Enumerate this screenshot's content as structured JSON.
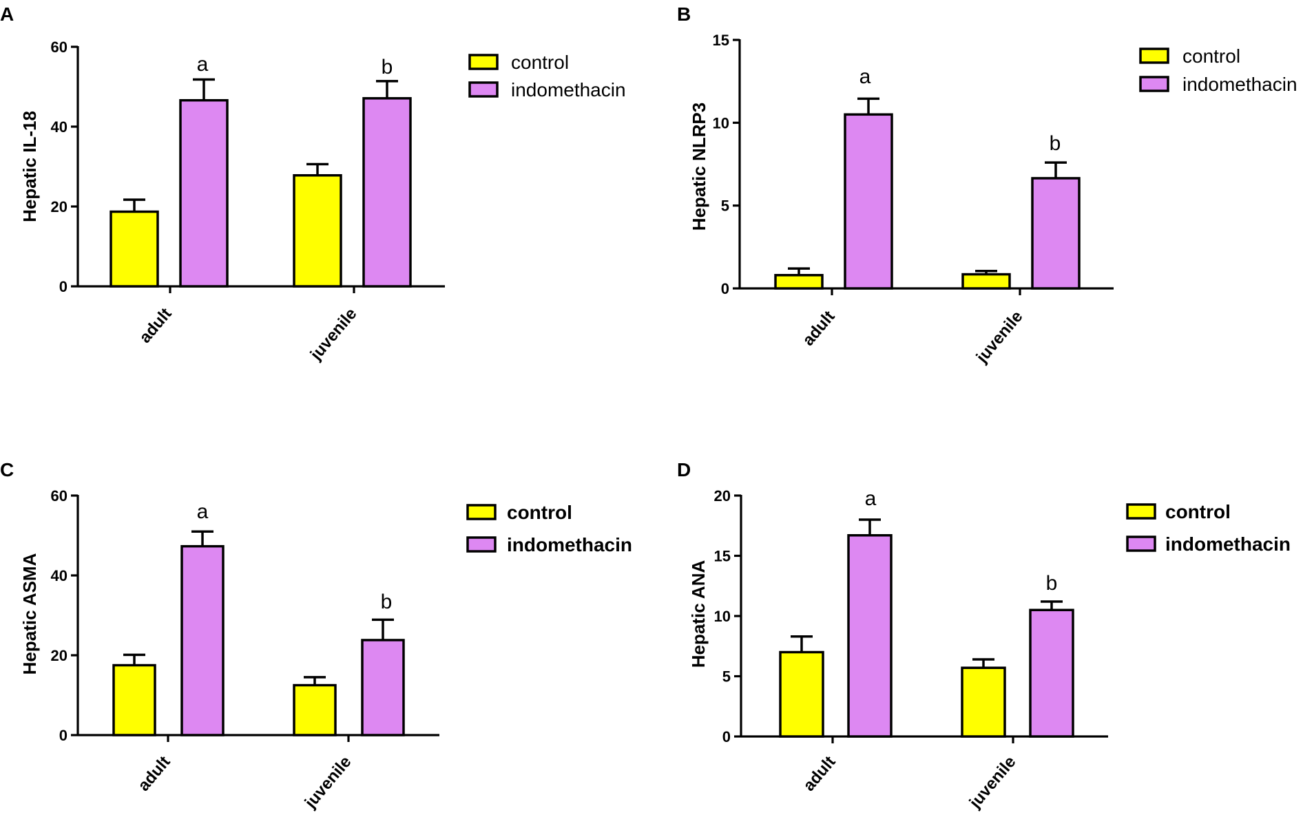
{
  "colors": {
    "control": "#ffff00",
    "indomethacin": "#dd88f2",
    "axis": "#000000"
  },
  "chart_data": [
    {
      "panel": "A",
      "type": "bar",
      "categories": [
        "adult",
        "juvenile"
      ],
      "ylabel": "Hepatic IL-18",
      "ylim": [
        0,
        60
      ],
      "yticks": [
        "0",
        "20",
        "40",
        "60"
      ],
      "series": [
        {
          "name": "control",
          "values": [
            18.7,
            27.8
          ],
          "errors": [
            3.0,
            2.8
          ]
        },
        {
          "name": "indomethacin",
          "values": [
            46.6,
            47.1
          ],
          "errors": [
            5.2,
            4.3
          ]
        }
      ],
      "annotations": [
        "a",
        "b"
      ],
      "legend": [
        "control",
        "indomethacin"
      ]
    },
    {
      "panel": "B",
      "type": "bar",
      "categories": [
        "adult",
        "juvenile"
      ],
      "ylabel": "Hepatic NLRP3",
      "ylim": [
        0,
        15
      ],
      "yticks": [
        "0",
        "5",
        "10",
        "15"
      ],
      "series": [
        {
          "name": "control",
          "values": [
            0.8,
            0.85
          ],
          "errors": [
            0.4,
            0.2
          ]
        },
        {
          "name": "indomethacin",
          "values": [
            10.5,
            6.65
          ],
          "errors": [
            0.95,
            0.95
          ]
        }
      ],
      "annotations": [
        "a",
        "b"
      ],
      "legend": [
        "control",
        "indomethacin"
      ]
    },
    {
      "panel": "C",
      "type": "bar",
      "categories": [
        "adult",
        "juvenile"
      ],
      "ylabel": "Hepatic ASMA",
      "ylim": [
        0,
        60
      ],
      "yticks": [
        "0",
        "20",
        "40",
        "60"
      ],
      "series": [
        {
          "name": "control",
          "values": [
            17.5,
            12.5
          ],
          "errors": [
            2.6,
            2.0
          ]
        },
        {
          "name": "indomethacin",
          "values": [
            47.3,
            23.8
          ],
          "errors": [
            3.7,
            5.1
          ]
        }
      ],
      "annotations": [
        "a",
        "b"
      ],
      "legend": [
        "control",
        "indomethacin"
      ]
    },
    {
      "panel": "D",
      "type": "bar",
      "categories": [
        "adult",
        "juvenile"
      ],
      "ylabel": "Hepatic ANA",
      "ylim": [
        0,
        20
      ],
      "yticks": [
        "0",
        "5",
        "10",
        "15",
        "20"
      ],
      "series": [
        {
          "name": "control",
          "values": [
            7.0,
            5.7
          ],
          "errors": [
            1.3,
            0.7
          ]
        },
        {
          "name": "indomethacin",
          "values": [
            16.7,
            10.5
          ],
          "errors": [
            1.3,
            0.7
          ]
        }
      ],
      "annotations": [
        "a",
        "b"
      ],
      "legend": [
        "control",
        "indomethacin"
      ]
    }
  ]
}
